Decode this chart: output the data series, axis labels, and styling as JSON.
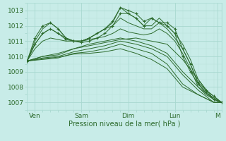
{
  "bg_color": "#c8ece8",
  "grid_color_major": "#a8d8d0",
  "grid_color_minor": "#b8e0d8",
  "line_color": "#2d6b2d",
  "xlim": [
    0,
    100
  ],
  "ylim": [
    1006.5,
    1013.5
  ],
  "yticks": [
    1007,
    1008,
    1009,
    1010,
    1011,
    1012,
    1013
  ],
  "xtick_labels": [
    "Ven",
    "Sam",
    "Dim",
    "Lun",
    "M"
  ],
  "xtick_positions": [
    4,
    28,
    52,
    76,
    98
  ],
  "xlabel": "Pression niveau de la mer( hPa )",
  "smooth_series": [
    [
      0,
      1009.7,
      8,
      1010.0,
      16,
      1010.1,
      24,
      1010.5,
      32,
      1010.7,
      40,
      1010.9,
      48,
      1011.1,
      56,
      1011.2,
      64,
      1011.0,
      72,
      1010.8,
      80,
      1009.8,
      88,
      1008.5,
      96,
      1007.2,
      100,
      1007.0
    ],
    [
      0,
      1009.7,
      8,
      1010.0,
      16,
      1010.2,
      24,
      1010.5,
      32,
      1010.8,
      40,
      1011.0,
      48,
      1011.2,
      56,
      1011.0,
      64,
      1010.7,
      72,
      1010.2,
      80,
      1009.0,
      88,
      1008.0,
      96,
      1007.2,
      100,
      1007.0
    ],
    [
      0,
      1009.7,
      8,
      1009.9,
      16,
      1010.0,
      24,
      1010.3,
      32,
      1010.5,
      40,
      1010.7,
      48,
      1011.0,
      56,
      1010.8,
      64,
      1010.5,
      72,
      1010.0,
      80,
      1008.8,
      88,
      1007.8,
      96,
      1007.0,
      100,
      1007.0
    ],
    [
      0,
      1009.7,
      8,
      1009.8,
      16,
      1009.9,
      24,
      1010.2,
      32,
      1010.3,
      40,
      1010.5,
      48,
      1010.8,
      56,
      1010.5,
      64,
      1010.2,
      72,
      1009.5,
      80,
      1008.2,
      88,
      1007.5,
      96,
      1007.0,
      100,
      1007.0
    ],
    [
      0,
      1009.7,
      8,
      1009.85,
      16,
      1009.95,
      24,
      1010.15,
      32,
      1010.2,
      40,
      1010.3,
      48,
      1010.5,
      56,
      1010.2,
      64,
      1009.8,
      72,
      1009.2,
      80,
      1008.0,
      88,
      1007.5,
      96,
      1007.0,
      100,
      1007.0
    ],
    [
      0,
      1009.7,
      4,
      1010.5,
      8,
      1011.0,
      12,
      1011.2,
      16,
      1011.1,
      20,
      1011.0,
      24,
      1011.0,
      28,
      1011.0,
      32,
      1011.1,
      36,
      1011.2,
      40,
      1011.3,
      44,
      1011.5,
      48,
      1011.8,
      52,
      1011.6,
      56,
      1011.5,
      60,
      1011.4,
      64,
      1011.5,
      68,
      1011.8,
      72,
      1011.5,
      76,
      1011.0,
      80,
      1010.2,
      84,
      1009.2,
      88,
      1008.0,
      92,
      1007.5,
      96,
      1007.2,
      100,
      1007.0
    ],
    [
      0,
      1009.7,
      4,
      1010.8,
      8,
      1011.5,
      12,
      1011.8,
      16,
      1011.5,
      20,
      1011.2,
      24,
      1011.0,
      28,
      1011.0,
      32,
      1011.2,
      36,
      1011.5,
      40,
      1011.8,
      44,
      1012.0,
      48,
      1012.5,
      52,
      1012.2,
      56,
      1012.0,
      60,
      1011.8,
      64,
      1011.8,
      68,
      1012.2,
      72,
      1011.8,
      76,
      1011.2,
      80,
      1010.5,
      84,
      1009.5,
      88,
      1008.2,
      92,
      1007.6,
      96,
      1007.3,
      100,
      1007.0
    ],
    [
      0,
      1009.7,
      4,
      1011.0,
      8,
      1011.8,
      12,
      1012.2,
      16,
      1011.8,
      20,
      1011.2,
      24,
      1011.0,
      28,
      1011.0,
      32,
      1011.2,
      36,
      1011.5,
      40,
      1011.8,
      44,
      1012.2,
      48,
      1013.2,
      52,
      1012.8,
      56,
      1012.5,
      60,
      1012.0,
      64,
      1012.0,
      68,
      1012.5,
      72,
      1012.0,
      76,
      1011.5,
      80,
      1010.8,
      84,
      1009.8,
      88,
      1008.5,
      92,
      1007.8,
      96,
      1007.4,
      100,
      1007.0
    ]
  ],
  "marker_series": [
    [
      0,
      1009.7,
      4,
      1010.8,
      8,
      1011.5,
      12,
      1011.8,
      16,
      1011.5,
      20,
      1011.1,
      24,
      1011.0,
      28,
      1010.9,
      32,
      1011.0,
      36,
      1011.2,
      40,
      1011.5,
      44,
      1012.0,
      48,
      1012.8,
      52,
      1012.8,
      56,
      1012.5,
      60,
      1012.0,
      64,
      1012.5,
      68,
      1012.2,
      72,
      1012.0,
      76,
      1011.5,
      80,
      1010.0,
      84,
      1009.0,
      88,
      1008.2,
      92,
      1007.7,
      96,
      1007.2,
      100,
      1007.0
    ],
    [
      0,
      1009.7,
      4,
      1011.2,
      8,
      1012.0,
      12,
      1012.2,
      16,
      1011.8,
      20,
      1011.2,
      24,
      1011.0,
      28,
      1011.0,
      32,
      1011.2,
      36,
      1011.5,
      40,
      1011.8,
      44,
      1012.3,
      48,
      1013.2,
      52,
      1013.0,
      56,
      1012.8,
      60,
      1012.3,
      64,
      1012.5,
      68,
      1012.2,
      72,
      1012.2,
      76,
      1011.8,
      80,
      1010.5,
      84,
      1009.5,
      88,
      1008.3,
      92,
      1007.8,
      96,
      1007.4,
      100,
      1007.0
    ]
  ]
}
